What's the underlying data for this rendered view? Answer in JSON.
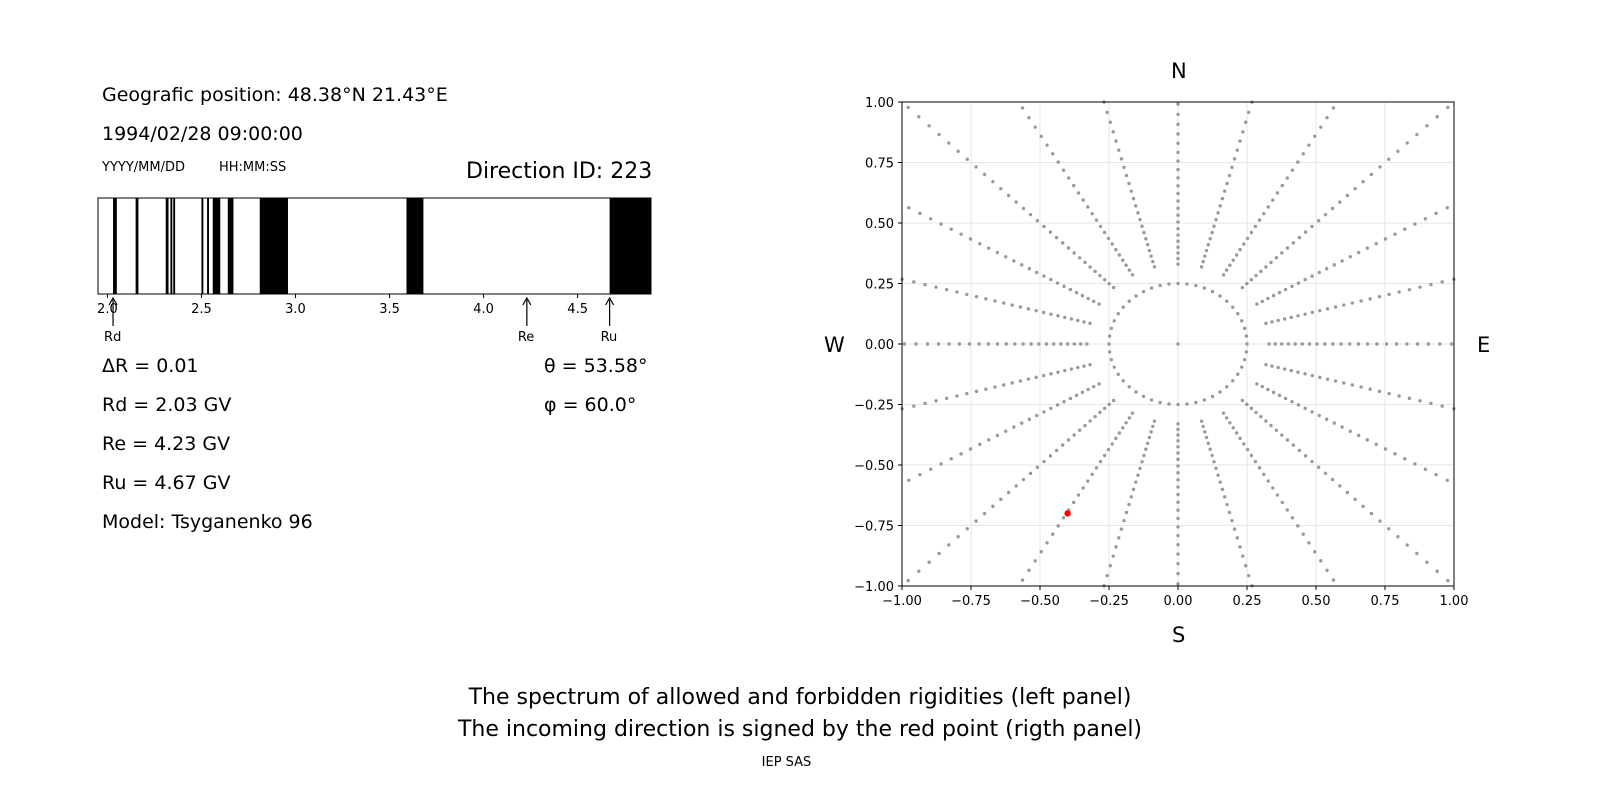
{
  "left_panel": {
    "geo_position": "Geografic position: 48.38°N 21.43°E",
    "datetime": "1994/02/28 09:00:00",
    "date_format": "YYYY/MM/DD",
    "time_format": "HH:MM:SS",
    "direction_id": "Direction ID: 223",
    "delta_r": "ΔR = 0.01",
    "rd": "Rd = 2.03 GV",
    "re": "Re = 4.23 GV",
    "ru": "Ru = 4.67 GV",
    "model": "Model: Tsyganenko 96",
    "theta": "θ = 53.58°",
    "phi": "φ = 60.0°",
    "markers": {
      "rd": "Rd",
      "re": "Re",
      "ru": "Ru"
    }
  },
  "right_panel": {
    "compass": {
      "n": "N",
      "s": "S",
      "w": "W",
      "e": "E"
    }
  },
  "caption": {
    "line1": "The spectrum of allowed and forbidden rigidities (left panel)",
    "line2": "The incoming direction is signed by the red point (rigth panel)",
    "credit": "IEP SAS"
  },
  "chart_data": [
    {
      "type": "bar",
      "xlim": [
        1.95,
        4.89
      ],
      "xticks": [
        2.0,
        2.5,
        3.0,
        3.5,
        4.0,
        4.5
      ],
      "forbidden_bands": [
        [
          2.03,
          2.05
        ],
        [
          2.15,
          2.165
        ],
        [
          2.31,
          2.325
        ],
        [
          2.335,
          2.345
        ],
        [
          2.35,
          2.36
        ],
        [
          2.5,
          2.51
        ],
        [
          2.53,
          2.54
        ],
        [
          2.56,
          2.6
        ],
        [
          2.64,
          2.67
        ],
        [
          2.81,
          2.96
        ],
        [
          3.59,
          3.68
        ],
        [
          4.67,
          4.89
        ]
      ],
      "markers": [
        {
          "label": "Rd",
          "value": 2.03
        },
        {
          "label": "Re",
          "value": 4.23
        },
        {
          "label": "Ru",
          "value": 4.67
        }
      ],
      "colors": {
        "forbidden": "#000000",
        "allowed": "#ffffff"
      }
    },
    {
      "type": "scatter",
      "xlim": [
        -1.0,
        1.0
      ],
      "ylim": [
        -1.0,
        1.0
      ],
      "xticks": [
        -1.0,
        -0.75,
        -0.5,
        -0.25,
        0.0,
        0.25,
        0.5,
        0.75,
        1.0
      ],
      "yticks": [
        -1.0,
        -0.75,
        -0.5,
        -0.25,
        0.0,
        0.25,
        0.5,
        0.75,
        1.0
      ],
      "xtick_labels": [
        "−1.00",
        "−0.75",
        "−0.50",
        "−0.25",
        "0.00",
        "0.25",
        "0.50",
        "0.75",
        "1.00"
      ],
      "ytick_labels": [
        "−1.00",
        "−0.75",
        "−0.50",
        "−0.25",
        "0.00",
        "0.25",
        "0.50",
        "0.75",
        "1.00"
      ],
      "grid": true,
      "grid_pattern": {
        "rays_count": 24,
        "ray_step_deg": 15,
        "radial_step": 0.02,
        "inner_circle_radius": 0.25,
        "inner_circle_points": 24
      },
      "highlight_point": {
        "x": -0.4,
        "y": -0.7
      },
      "colors": {
        "grid_points": "#999999",
        "highlight": "#ff0000",
        "gridlines": "#e6e6e6"
      }
    }
  ]
}
